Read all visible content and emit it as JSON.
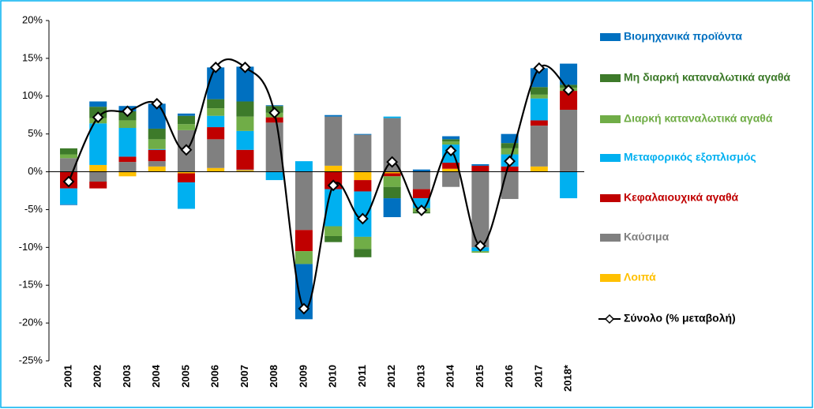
{
  "chart_data": {
    "type": "stacked-bar-line",
    "categories": [
      "2001",
      "2002",
      "2003",
      "2004",
      "2005",
      "2006",
      "2007",
      "2008",
      "2009",
      "2010",
      "2011",
      "2012",
      "2013",
      "2014",
      "2015",
      "2016",
      "2017",
      "2018*"
    ],
    "series": [
      {
        "name": "Βιομηχανικά προϊόντα",
        "color": "#0070c0",
        "values": [
          -0.1,
          0.7,
          0.7,
          3.3,
          0.3,
          4.2,
          4.6,
          0.1,
          -7.3,
          0.2,
          0.1,
          -2.5,
          0.3,
          0.4,
          0.2,
          1.2,
          2.5,
          2.8
        ]
      },
      {
        "name": "Μη διαρκή καταναλωτικά αγαθά",
        "color": "#3d7a2a",
        "values": [
          0.8,
          1.5,
          1.2,
          1.4,
          1.1,
          1.2,
          2.0,
          0.9,
          0,
          -0.8,
          -1.1,
          -1.5,
          -0.2,
          0.3,
          0,
          0.7,
          1.0,
          0.4
        ]
      },
      {
        "name": "Διαρκή καταναλωτικά αγαθά",
        "color": "#70ad47",
        "values": [
          0.5,
          0.7,
          1.0,
          1.3,
          0.8,
          1.0,
          1.9,
          0.6,
          -1.7,
          -1.3,
          -1.6,
          -1.4,
          -0.5,
          0.4,
          -0.2,
          0.8,
          0.5,
          0.4
        ]
      },
      {
        "name": "Μεταφορικός εξοπλισμός",
        "color": "#00b0f0",
        "values": [
          -2.1,
          5.5,
          3.8,
          0.1,
          -3.5,
          1.5,
          2.5,
          -1.1,
          1.4,
          -4.9,
          -6.0,
          0.2,
          -1.3,
          2.4,
          -0.5,
          1.6,
          2.9,
          -3.5
        ]
      },
      {
        "name": "Κεφαλαιουχικά αγαθά",
        "color": "#c00000",
        "values": [
          -2.2,
          -0.9,
          0.7,
          1.5,
          -1.2,
          1.6,
          2.6,
          0.7,
          -2.8,
          -2.3,
          -1.5,
          -0.4,
          -1.2,
          0.8,
          0.8,
          0.7,
          0.7,
          2.5
        ]
      },
      {
        "name": "Καύσιμα",
        "color": "#808080",
        "values": [
          1.8,
          -1.3,
          1.3,
          0.7,
          5.5,
          3.8,
          0.1,
          6.5,
          -7.7,
          6.5,
          4.9,
          7.1,
          -2.3,
          -2.0,
          -10.0,
          -3.6,
          5.4,
          8.2
        ]
      },
      {
        "name": "Λοιπά",
        "color": "#ffc000",
        "values": [
          0,
          0.9,
          -0.6,
          0.7,
          -0.2,
          0.5,
          0.2,
          0,
          0,
          0.8,
          -1.1,
          -0.2,
          0,
          0.4,
          0,
          0,
          0.7,
          0
        ]
      }
    ],
    "line": {
      "name": "Σύνολο (% μεταβολή)",
      "color": "#000000",
      "values": [
        -1.3,
        7.2,
        8.0,
        9.0,
        2.9,
        13.8,
        13.8,
        7.8,
        -18.1,
        -1.8,
        -6.2,
        1.3,
        -5.1,
        2.8,
        -9.8,
        1.4,
        13.7,
        10.8
      ]
    },
    "ylim": [
      -25,
      20
    ],
    "yticks": [
      {
        "value": -25,
        "label": "-25%"
      },
      {
        "value": -20,
        "label": "-20%"
      },
      {
        "value": -15,
        "label": "-15%"
      },
      {
        "value": -10,
        "label": "-10%"
      },
      {
        "value": -5,
        "label": "-5%"
      },
      {
        "value": 0,
        "label": "0%"
      },
      {
        "value": 5,
        "label": "5%"
      },
      {
        "value": 10,
        "label": "10%"
      },
      {
        "value": 15,
        "label": "15%"
      },
      {
        "value": 20,
        "label": "20%"
      }
    ],
    "grid": false
  }
}
